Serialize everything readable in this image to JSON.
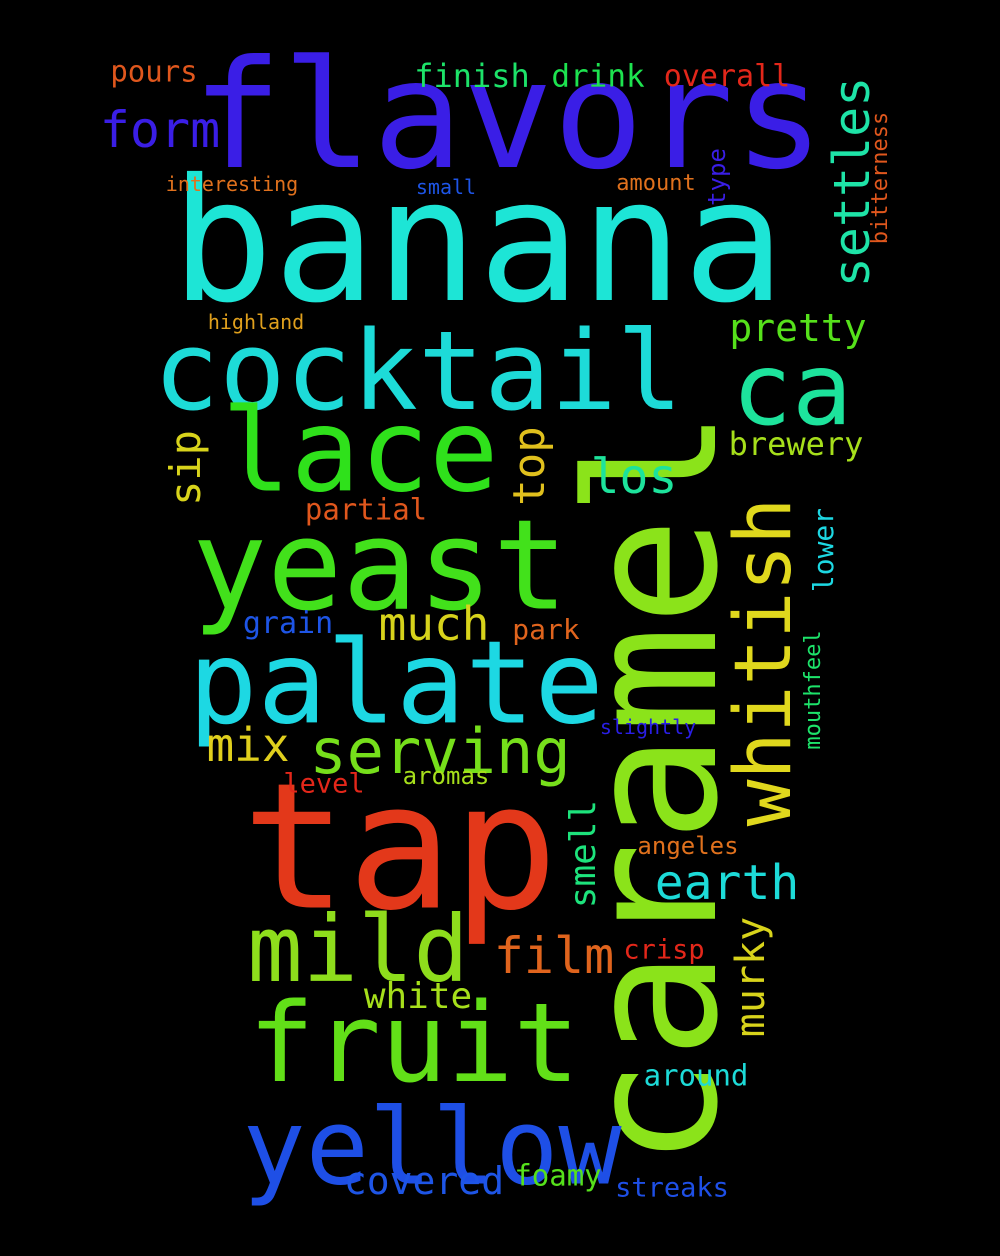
{
  "words": [
    {
      "text": "banana",
      "color": "#1de5d6"
    },
    {
      "text": "caramel",
      "color": "#8be31a"
    },
    {
      "text": "flavors",
      "color": "#3a1ee6"
    },
    {
      "text": "tap",
      "color": "#e3381a"
    },
    {
      "text": "cocktail",
      "color": "#1ddbd8"
    },
    {
      "text": "yeast",
      "color": "#42e11b"
    },
    {
      "text": "palate",
      "color": "#1dd8e3"
    },
    {
      "text": "lace",
      "color": "#2fe11b"
    },
    {
      "text": "fruit",
      "color": "#62df18"
    },
    {
      "text": "yellow",
      "color": "#1e4fe6"
    },
    {
      "text": "mild",
      "color": "#8edd1c"
    },
    {
      "text": "whitish",
      "color": "#e0d81d"
    },
    {
      "text": "ca",
      "color": "#1de39c"
    },
    {
      "text": "serving",
      "color": "#76df1b"
    },
    {
      "text": "settles",
      "color": "#1ee3a7"
    },
    {
      "text": "form",
      "color": "#3a1ee6"
    },
    {
      "text": "much",
      "color": "#d7d31b"
    },
    {
      "text": "mix",
      "color": "#e0cf1d"
    },
    {
      "text": "earth",
      "color": "#1ddbd8"
    },
    {
      "text": "film",
      "color": "#e0641d"
    },
    {
      "text": "los",
      "color": "#1de39c"
    },
    {
      "text": "pretty",
      "color": "#56e11b"
    },
    {
      "text": "top",
      "color": "#e0c01d"
    },
    {
      "text": "sip",
      "color": "#d8d31b"
    },
    {
      "text": "murky",
      "color": "#d8d31b"
    },
    {
      "text": "brewery",
      "color": "#a6df1b"
    },
    {
      "text": "covered",
      "color": "#1e55e6"
    },
    {
      "text": "smell",
      "color": "#1de37c"
    },
    {
      "text": "white",
      "color": "#a6df1b"
    },
    {
      "text": "finish",
      "color": "#1de369"
    },
    {
      "text": "drink",
      "color": "#1de34f"
    },
    {
      "text": "overall",
      "color": "#e3271a"
    },
    {
      "text": "pours",
      "color": "#e0571d"
    },
    {
      "text": "foamy",
      "color": "#56e11b"
    },
    {
      "text": "grain",
      "color": "#1e55e6"
    },
    {
      "text": "park",
      "color": "#e0641d"
    },
    {
      "text": "partial",
      "color": "#e0571d"
    },
    {
      "text": "around",
      "color": "#1ddbd8"
    },
    {
      "text": "streaks",
      "color": "#1e4fe6"
    },
    {
      "text": "lower",
      "color": "#1dd8e3"
    },
    {
      "text": "crisp",
      "color": "#e3271a"
    },
    {
      "text": "angeles",
      "color": "#e0711d"
    },
    {
      "text": "aromas",
      "color": "#a6df1b"
    },
    {
      "text": "level",
      "color": "#e3271a"
    },
    {
      "text": "mouthfeel",
      "color": "#1de36a"
    },
    {
      "text": "bitterness",
      "color": "#e0571d"
    },
    {
      "text": "type",
      "color": "#3a1ee6"
    },
    {
      "text": "amount",
      "color": "#e0711d"
    },
    {
      "text": "interesting",
      "color": "#e0711d"
    },
    {
      "text": "small",
      "color": "#1e55e6"
    },
    {
      "text": "highland",
      "color": "#e0a01d"
    },
    {
      "text": "slightly",
      "color": "#2a1ee6"
    }
  ]
}
